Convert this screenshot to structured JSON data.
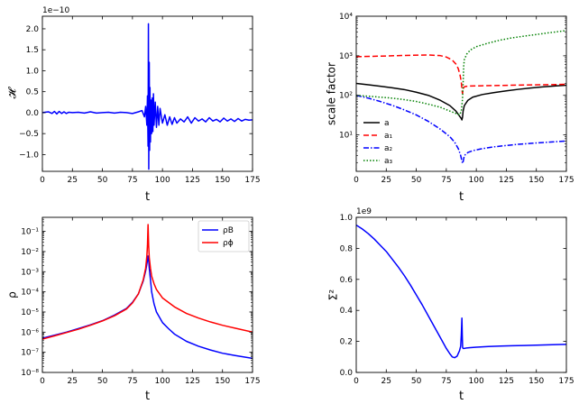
{
  "chart_data": [
    {
      "id": "hamiltonian",
      "type": "line",
      "xlabel": "t",
      "ylabel": "𝓗",
      "offset_text": "1e−10",
      "xlim": [
        0,
        175
      ],
      "ylim": [
        -1.4,
        2.3
      ],
      "yscale": "linear",
      "xticks": [
        0,
        25,
        50,
        75,
        100,
        125,
        150,
        175
      ],
      "yticks": [
        -1.0,
        -0.5,
        0.0,
        0.5,
        1.0,
        1.5,
        2.0
      ],
      "ytick_labels": [
        "−1.0",
        "−0.5",
        "0.0",
        "0.5",
        "1.0",
        "1.5",
        "2.0"
      ],
      "grid": false,
      "series": [
        {
          "color": "#0000ff",
          "style": "solid",
          "x": [
            0,
            5,
            8,
            10,
            12,
            14,
            16,
            18,
            20,
            22,
            25,
            30,
            35,
            40,
            45,
            50,
            55,
            60,
            65,
            70,
            75,
            80,
            83,
            85,
            86,
            87,
            87.5,
            88,
            88.3,
            88.6,
            89,
            89.3,
            89.6,
            90,
            90.5,
            91,
            91.5,
            92,
            92.5,
            93,
            94,
            95,
            96,
            97,
            98,
            100,
            102,
            104,
            106,
            108,
            110,
            112,
            115,
            118,
            121,
            124,
            127,
            130,
            133,
            136,
            139,
            142,
            145,
            148,
            151,
            154,
            157,
            160,
            163,
            166,
            169,
            172,
            175
          ],
          "y": [
            0.0,
            0.02,
            -0.02,
            0.03,
            -0.03,
            0.03,
            -0.02,
            0.02,
            -0.02,
            0.01,
            0.0,
            0.01,
            -0.01,
            0.02,
            -0.01,
            0.0,
            0.01,
            -0.01,
            0.01,
            0.0,
            -0.02,
            0.02,
            0.05,
            -0.1,
            0.15,
            -0.3,
            0.4,
            -0.8,
            2.12,
            -1.35,
            1.2,
            -0.9,
            0.6,
            -0.7,
            0.3,
            -0.5,
            0.35,
            -0.45,
            0.45,
            -0.3,
            0.25,
            -0.35,
            0.15,
            -0.3,
            0.1,
            -0.25,
            -0.05,
            -0.3,
            -0.1,
            -0.28,
            -0.12,
            -0.25,
            -0.15,
            -0.22,
            -0.1,
            -0.25,
            -0.12,
            -0.2,
            -0.15,
            -0.22,
            -0.12,
            -0.2,
            -0.16,
            -0.22,
            -0.13,
            -0.2,
            -0.15,
            -0.21,
            -0.14,
            -0.2,
            -0.16,
            -0.18,
            -0.17
          ]
        }
      ]
    },
    {
      "id": "scale-factors",
      "type": "line",
      "xlabel": "t",
      "ylabel": "scale factor",
      "xlim": [
        0,
        175
      ],
      "ylim": [
        1.2,
        10000
      ],
      "yscale": "log",
      "xticks": [
        0,
        25,
        50,
        75,
        100,
        125,
        150,
        175
      ],
      "yticks": [
        10,
        100,
        1000,
        10000
      ],
      "ytick_labels": [
        "10¹",
        "10²",
        "10³",
        "10⁴"
      ],
      "legend_position": "center-left",
      "grid": false,
      "series": [
        {
          "name": "a",
          "color": "#000000",
          "style": "solid",
          "x": [
            0,
            10,
            20,
            30,
            40,
            50,
            60,
            70,
            78,
            83,
            86,
            87.5,
            88,
            88.5,
            89,
            90,
            93,
            97,
            105,
            115,
            125,
            135,
            145,
            155,
            165,
            175
          ],
          "y": [
            200,
            185,
            170,
            155,
            140,
            120,
            100,
            75,
            55,
            40,
            30,
            26,
            24,
            28,
            40,
            55,
            75,
            90,
            105,
            118,
            130,
            142,
            153,
            163,
            172,
            180
          ]
        },
        {
          "name": "a₁",
          "color": "#ff0000",
          "style": "dashed",
          "x": [
            0,
            20,
            40,
            60,
            70,
            75,
            80,
            83,
            85,
            86.5,
            87.5,
            88,
            88.5,
            89,
            89.5,
            91,
            95,
            105,
            120,
            140,
            160,
            175
          ],
          "y": [
            950,
            980,
            1020,
            1050,
            1010,
            930,
            780,
            620,
            470,
            320,
            220,
            140,
            110,
            140,
            160,
            168,
            172,
            175,
            178,
            183,
            186,
            190
          ]
        },
        {
          "name": "a₂",
          "color": "#0000ff",
          "style": "dashdot",
          "x": [
            0,
            10,
            20,
            30,
            40,
            50,
            60,
            70,
            78,
            82,
            85,
            87,
            88,
            88.5,
            89,
            89.5,
            90,
            93,
            97,
            105,
            115,
            125,
            135,
            145,
            155,
            165,
            175
          ],
          "y": [
            100,
            85,
            70,
            56,
            43,
            32,
            22,
            14,
            9,
            6.5,
            4.5,
            3.0,
            2.2,
            1.9,
            2.1,
            2.5,
            3.0,
            3.6,
            4.0,
            4.5,
            5.0,
            5.4,
            5.8,
            6.1,
            6.4,
            6.7,
            7.0
          ]
        },
        {
          "name": "a₃",
          "color": "#008000",
          "style": "dotted",
          "x": [
            0,
            10,
            20,
            30,
            40,
            50,
            60,
            70,
            78,
            83,
            86,
            87.5,
            88.5,
            89,
            89.5,
            90,
            92,
            95,
            100,
            110,
            120,
            130,
            140,
            150,
            160,
            170,
            175
          ],
          "y": [
            100,
            95,
            90,
            85,
            78,
            70,
            60,
            50,
            40,
            35,
            32,
            40,
            80,
            200,
            550,
            800,
            1100,
            1400,
            1700,
            2100,
            2500,
            2850,
            3150,
            3450,
            3800,
            4150,
            4350
          ]
        }
      ]
    },
    {
      "id": "energy-density",
      "type": "line",
      "xlabel": "t",
      "ylabel": "ρ",
      "xlim": [
        0,
        175
      ],
      "ylim": [
        1e-08,
        0.5
      ],
      "yscale": "log",
      "xticks": [
        0,
        25,
        50,
        75,
        100,
        125,
        150,
        175
      ],
      "yticks": [
        1e-08,
        1e-07,
        1e-06,
        1e-05,
        0.0001,
        0.001,
        0.01,
        0.1
      ],
      "ytick_labels": [
        "10⁻⁸",
        "10⁻⁷",
        "10⁻⁶",
        "10⁻⁵",
        "10⁻⁴",
        "10⁻³",
        "10⁻²",
        "10⁻¹"
      ],
      "legend_position": "top-right",
      "grid": false,
      "series": [
        {
          "name": "ρB",
          "color": "#0000ff",
          "style": "solid",
          "x": [
            0,
            10,
            20,
            30,
            40,
            50,
            60,
            70,
            75,
            80,
            84,
            86,
            87.5,
            88,
            88.5,
            89,
            90,
            91,
            93,
            95,
            100,
            105,
            110,
            120,
            130,
            140,
            150,
            160,
            175
          ],
          "y": [
            5e-07,
            7e-07,
            1e-06,
            1.5e-06,
            2.3e-06,
            3.7e-06,
            7e-06,
            1.5e-05,
            3e-05,
            8e-05,
            0.00035,
            0.0011,
            0.0035,
            0.006,
            0.004,
            0.0015,
            0.0004,
            0.0001,
            2.5e-05,
            1e-05,
            3e-06,
            1.5e-06,
            8e-07,
            3.5e-07,
            2e-07,
            1.3e-07,
            9e-08,
            7e-08,
            5e-08
          ]
        },
        {
          "name": "ρϕ",
          "color": "#ff0000",
          "style": "solid",
          "x": [
            0,
            10,
            20,
            30,
            40,
            50,
            60,
            70,
            75,
            80,
            84,
            86,
            87,
            87.5,
            88,
            88.5,
            89,
            90,
            91,
            93,
            95,
            100,
            110,
            120,
            130,
            140,
            150,
            160,
            175
          ],
          "y": [
            4.5e-07,
            6.5e-07,
            9.5e-07,
            1.4e-06,
            2.2e-06,
            3.6e-06,
            6.5e-06,
            1.4e-05,
            2.8e-05,
            8e-05,
            0.0004,
            0.0015,
            0.006,
            0.02,
            0.22,
            0.02,
            0.005,
            0.0015,
            0.0006,
            0.00025,
            0.00013,
            5e-05,
            1.8e-05,
            8.5e-06,
            5e-06,
            3.2e-06,
            2.2e-06,
            1.6e-06,
            1e-06
          ]
        }
      ]
    },
    {
      "id": "shear",
      "type": "line",
      "xlabel": "t",
      "ylabel": "Σ²",
      "offset_text": "1e9",
      "xlim": [
        0,
        175
      ],
      "ylim": [
        0,
        1.0
      ],
      "yscale": "linear",
      "xticks": [
        0,
        25,
        50,
        75,
        100,
        125,
        150,
        175
      ],
      "yticks": [
        0.0,
        0.2,
        0.4,
        0.6,
        0.8,
        1.0
      ],
      "ytick_labels": [
        "0.0",
        "0.2",
        "0.4",
        "0.6",
        "0.8",
        "1.0"
      ],
      "grid": false,
      "series": [
        {
          "color": "#0000ff",
          "style": "solid",
          "x": [
            0,
            5,
            10,
            15,
            20,
            25,
            30,
            35,
            40,
            45,
            50,
            55,
            60,
            65,
            70,
            75,
            78,
            80,
            82,
            84,
            86,
            87,
            87.5,
            88,
            88.3,
            88.6,
            89,
            90,
            92,
            95,
            100,
            110,
            120,
            130,
            140,
            150,
            160,
            170,
            175
          ],
          "y": [
            0.95,
            0.925,
            0.895,
            0.86,
            0.82,
            0.78,
            0.73,
            0.68,
            0.625,
            0.565,
            0.5,
            0.435,
            0.365,
            0.295,
            0.225,
            0.155,
            0.12,
            0.1,
            0.095,
            0.105,
            0.14,
            0.17,
            0.24,
            0.35,
            0.24,
            0.16,
            0.155,
            0.155,
            0.158,
            0.16,
            0.163,
            0.167,
            0.17,
            0.172,
            0.174,
            0.176,
            0.178,
            0.18,
            0.181
          ]
        }
      ]
    }
  ]
}
